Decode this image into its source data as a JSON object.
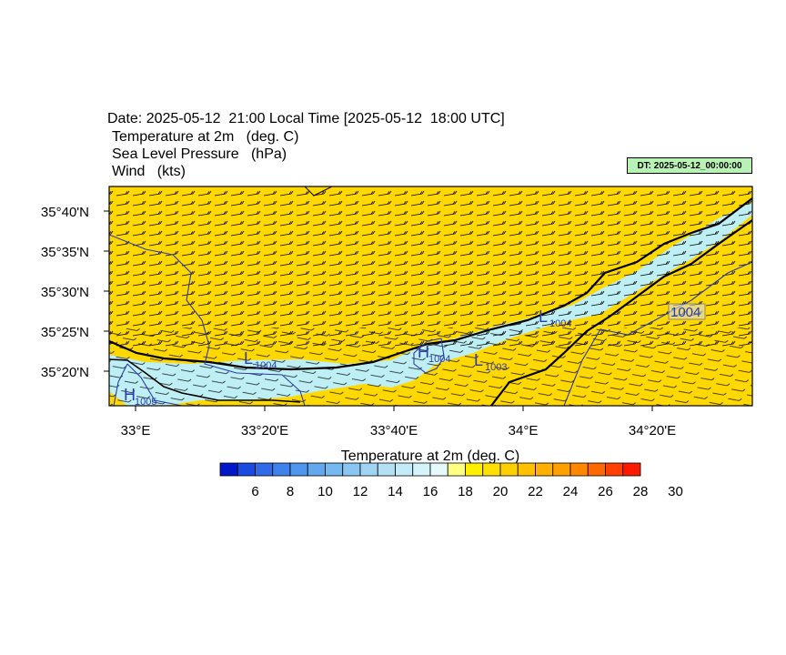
{
  "header": {
    "date_line": "Date: 2025-05-12  21:00 Local Time [2025-05-12  18:00 UTC]",
    "line2": "Temperature at 2m   (deg. C)",
    "line3": "Sea Level Pressure   (hPa)",
    "line4": "Wind   (kts)"
  },
  "dt_badge": "DT: 2025-05-12_00:00:00",
  "axes": {
    "lat_labels": [
      "35°40'N",
      "35°35'N",
      "35°30'N",
      "35°25'N",
      "35°20'N"
    ],
    "lon_labels": [
      "33°E",
      "33°20'E",
      "33°40'E",
      "34°E",
      "34°20'E"
    ]
  },
  "pressure_labels": [
    {
      "type": "H",
      "value": "1005"
    },
    {
      "type": "L",
      "value": "1004"
    },
    {
      "type": "H",
      "value": "1004"
    },
    {
      "type": "L",
      "value": "1003"
    },
    {
      "type": "L",
      "value": "1004"
    }
  ],
  "isobar_label": "1004",
  "colorbar": {
    "title": "Temperature at 2m  (deg. C)",
    "tick_labels": [
      "6",
      "8",
      "10",
      "12",
      "14",
      "16",
      "18",
      "20",
      "22",
      "24",
      "26",
      "28",
      "30"
    ],
    "colors": [
      "#0018c8",
      "#1a4be0",
      "#2f6ae8",
      "#3f82ec",
      "#4f96ee",
      "#62a8ef",
      "#76b8f0",
      "#8ac6f1",
      "#a0d4f3",
      "#b3e0f5",
      "#c4ecf8",
      "#d4f4f9",
      "#e6fafb",
      "#ffff80",
      "#fff000",
      "#ffe000",
      "#ffd000",
      "#ffc000",
      "#ffb000",
      "#ffa000",
      "#ff8800",
      "#ff6800",
      "#ff4000",
      "#ff1800"
    ]
  },
  "colors": {
    "land_warm": "#ffd800",
    "coast_cool": "#bdeff5",
    "isobar": "#2b3bb0",
    "coast_line": "#000000"
  }
}
